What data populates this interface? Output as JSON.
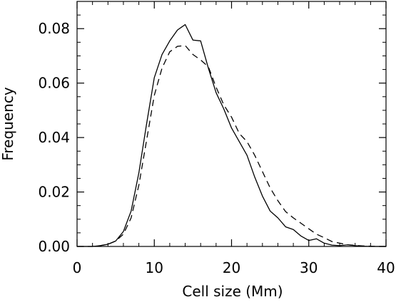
{
  "chart_data": {
    "type": "line",
    "title": "",
    "xlabel": "Cell size (Mm)",
    "ylabel": "Frequency",
    "xlim": [
      0,
      40
    ],
    "ylim": [
      0,
      0.09
    ],
    "xticks": [
      0,
      10,
      20,
      30,
      40
    ],
    "xtick_labels": [
      "0",
      "10",
      "20",
      "30",
      "40"
    ],
    "yticks": [
      0.0,
      0.02,
      0.04,
      0.06,
      0.08
    ],
    "ytick_labels": [
      "0.00",
      "0.02",
      "0.04",
      "0.06",
      "0.08"
    ],
    "grid": false,
    "legend": "none",
    "series": [
      {
        "style": "solid",
        "color": "#000000",
        "x": [
          0,
          1,
          2,
          3,
          4,
          5,
          6,
          7,
          8,
          9,
          10,
          11,
          12,
          13,
          14,
          15,
          16,
          17,
          18,
          19,
          20,
          21,
          22,
          23,
          24,
          25,
          26,
          27,
          28,
          29,
          30,
          31,
          32,
          33,
          34,
          35,
          36,
          37,
          38,
          39,
          40
        ],
        "y": [
          0.0,
          0.0,
          0.0,
          0.0003,
          0.0008,
          0.002,
          0.0055,
          0.013,
          0.027,
          0.045,
          0.062,
          0.0705,
          0.0755,
          0.0795,
          0.0815,
          0.0758,
          0.0755,
          0.0655,
          0.0565,
          0.0505,
          0.0435,
          0.0385,
          0.0335,
          0.0255,
          0.0185,
          0.013,
          0.0105,
          0.0072,
          0.0062,
          0.0038,
          0.0022,
          0.0028,
          0.0012,
          0.0005,
          0.0003,
          0.0006,
          0.0003,
          0.0001,
          0.0,
          0.0,
          0.0
        ]
      },
      {
        "style": "dashed",
        "color": "#000000",
        "x": [
          0,
          1,
          2,
          3,
          4,
          5,
          6,
          7,
          8,
          9,
          10,
          11,
          12,
          13,
          14,
          15,
          16,
          17,
          18,
          19,
          20,
          21,
          22,
          23,
          24,
          25,
          26,
          27,
          28,
          29,
          30,
          31,
          32,
          33,
          34,
          35,
          36,
          37,
          38,
          39,
          40
        ],
        "y": [
          0.0,
          0.0,
          0.0,
          0.0003,
          0.0008,
          0.002,
          0.0045,
          0.0105,
          0.0225,
          0.039,
          0.0555,
          0.0655,
          0.0715,
          0.0735,
          0.0738,
          0.0705,
          0.0685,
          0.066,
          0.0585,
          0.052,
          0.0475,
          0.0415,
          0.0385,
          0.0335,
          0.0275,
          0.0215,
          0.0168,
          0.0128,
          0.0105,
          0.0085,
          0.0065,
          0.0045,
          0.0032,
          0.0018,
          0.0012,
          0.0006,
          0.0004,
          0.0002,
          0.0001,
          0.0,
          0.0
        ]
      }
    ]
  }
}
